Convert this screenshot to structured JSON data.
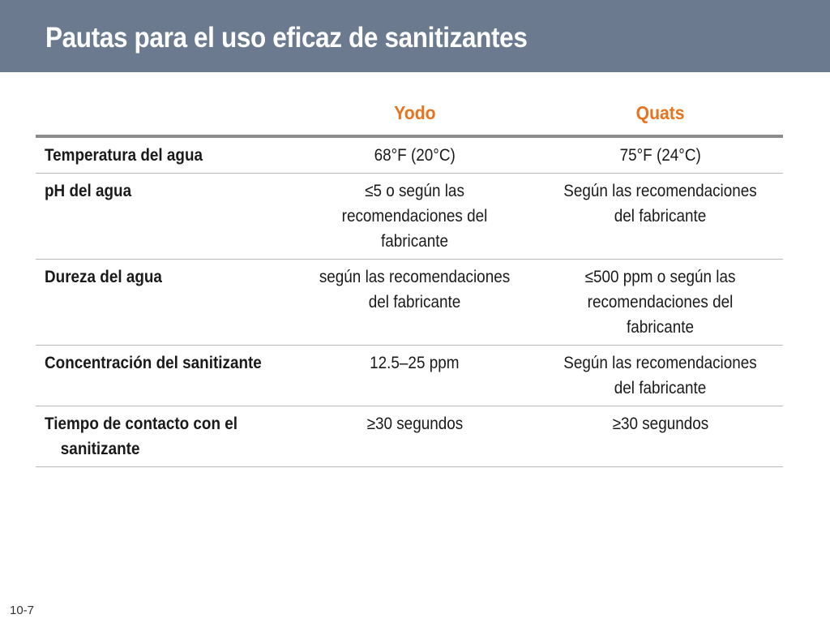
{
  "slide": {
    "title": "Pautas para el uso eficaz de sanitizantes",
    "number": "10-7"
  },
  "table": {
    "columns": [
      "",
      "Yodo",
      "Quats"
    ],
    "rows": [
      {
        "label": "Temperatura del agua",
        "yodo": "68°F (20°C)",
        "quats": "75°F (24°C)"
      },
      {
        "label": "pH del agua",
        "yodo": "≤5 o según las recomendaciones del fabricante",
        "quats": "Según las recomendaciones del fabricante"
      },
      {
        "label": "Dureza del agua",
        "yodo": "según las recomendaciones del fabricante",
        "quats": "≤500 ppm o según las recomendaciones del fabricante"
      },
      {
        "label": "Concentración del sanitizante",
        "yodo": "12.5–25 ppm",
        "quats": "Según las recomendaciones del fabricante"
      },
      {
        "label": "Tiempo de contacto con el sanitizante",
        "yodo": "≥30 segundos",
        "quats": "≥30 segundos"
      }
    ]
  },
  "colors": {
    "title_bar": "#6b7a8f",
    "header_text": "#e8731e"
  }
}
